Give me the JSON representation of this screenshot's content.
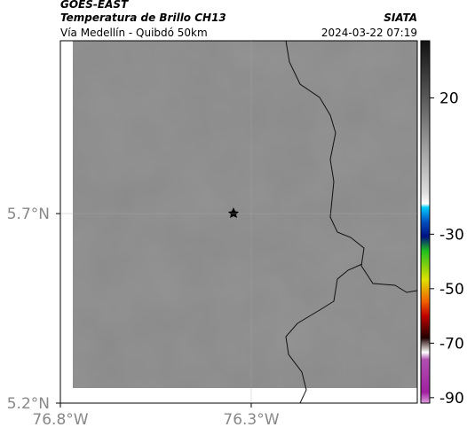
{
  "header": {
    "title": "GOES-EAST",
    "subtitle": "Temperatura de Brillo CH13",
    "location": "Vía Medellín - Quibdó 50km",
    "source": "SIATA",
    "datetime": "2024-03-22 07:19"
  },
  "map": {
    "lonlim": [
      -76.8,
      -75.865
    ],
    "latlim": [
      5.2,
      6.156
    ],
    "lon_ticks": [
      {
        "value": -76.8,
        "label": "76.8°W"
      },
      {
        "value": -76.3,
        "label": "76.3°W"
      }
    ],
    "lat_ticks": [
      {
        "value": 5.7,
        "label": "5.7°N"
      },
      {
        "value": 5.2,
        "label": "5.2°N"
      }
    ],
    "colorbar": {
      "lim": [
        -92,
        41
      ],
      "ticks": [
        20,
        -30,
        -50,
        -70,
        -90
      ]
    }
  }
}
